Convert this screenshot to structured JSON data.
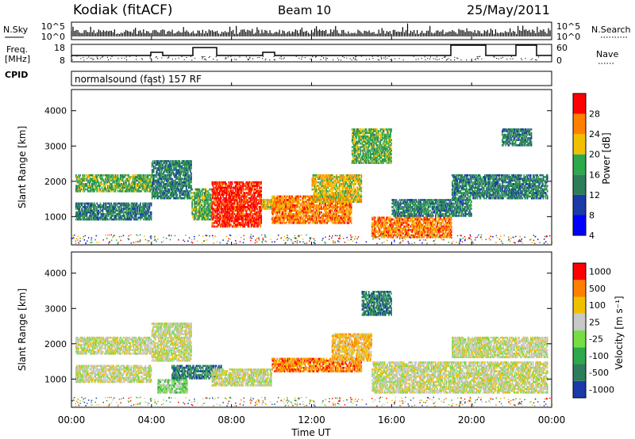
{
  "header": {
    "station": "Kodiak (fitACF)",
    "beam": "Beam 10",
    "date": "25/May/2011"
  },
  "top_panels": {
    "nsky_label": "N.Sky",
    "nsearch_label": "N.Search",
    "freq_label_line1": "Freq.",
    "freq_label_line2": "[MHz]",
    "nave_label": "Nave",
    "cpid_label": "CPID",
    "left_ticks_top": [
      "10^5",
      "10^0"
    ],
    "right_ticks_top": [
      "10^5",
      "10^0"
    ],
    "freq_ticks": [
      "18",
      "8"
    ],
    "nave_ticks": [
      "60",
      "0"
    ],
    "cpid_text": "normalsound (fast) 157 RF"
  },
  "chart_data": [
    {
      "type": "heatmap",
      "name": "power",
      "ylabel": "Slant Range [km]",
      "yticks": [
        "1000",
        "2000",
        "3000",
        "4000"
      ],
      "ylim": [
        200,
        4600
      ],
      "xlim": [
        0,
        24
      ],
      "colorbar_label": "Power [dB]",
      "colorbar_ticks": [
        "28",
        "24",
        "20",
        "16",
        "12",
        "8",
        "4"
      ],
      "colors": [
        "#0000ff",
        "#1a3aa8",
        "#2e7d5a",
        "#2ea84c",
        "#f0c000",
        "#ff8000",
        "#ff0000"
      ],
      "echo_regions": [
        {
          "t0": 0.2,
          "t1": 4.0,
          "r0": 1700,
          "r1": 2200,
          "level": 3
        },
        {
          "t0": 0.2,
          "t1": 4.0,
          "r0": 900,
          "r1": 1400,
          "level": 2
        },
        {
          "t0": 4.0,
          "t1": 6.0,
          "r0": 1500,
          "r1": 2600,
          "level": 2
        },
        {
          "t0": 6.0,
          "t1": 7.0,
          "r0": 900,
          "r1": 1800,
          "level": 3
        },
        {
          "t0": 7.0,
          "t1": 9.5,
          "r0": 700,
          "r1": 2000,
          "level": 6
        },
        {
          "t0": 9.5,
          "t1": 11.0,
          "r0": 1200,
          "r1": 1500,
          "level": 4
        },
        {
          "t0": 10.0,
          "t1": 14.0,
          "r0": 800,
          "r1": 1600,
          "level": 5
        },
        {
          "t0": 12.0,
          "t1": 14.5,
          "r0": 1400,
          "r1": 2200,
          "level": 4
        },
        {
          "t0": 14.0,
          "t1": 16.0,
          "r0": 2500,
          "r1": 3500,
          "level": 3
        },
        {
          "t0": 15.0,
          "t1": 19.0,
          "r0": 400,
          "r1": 1000,
          "level": 5
        },
        {
          "t0": 16.0,
          "t1": 20.0,
          "r0": 1000,
          "r1": 1500,
          "level": 2
        },
        {
          "t0": 19.0,
          "t1": 23.8,
          "r0": 1500,
          "r1": 2200,
          "level": 2
        },
        {
          "t0": 21.5,
          "t1": 23.0,
          "r0": 3000,
          "r1": 3500,
          "level": 2
        }
      ]
    },
    {
      "type": "heatmap",
      "name": "velocity",
      "ylabel": "Slant Range [km]",
      "yticks": [
        "1000",
        "2000",
        "3000",
        "4000"
      ],
      "ylim": [
        200,
        4600
      ],
      "xlim": [
        0,
        24
      ],
      "colorbar_label": "Velocity [m s⁻¹]",
      "colorbar_ticks": [
        "1000",
        "500",
        "100",
        "25",
        "-25",
        "-100",
        "-500",
        "-1000"
      ],
      "colors": [
        "#1a3aa8",
        "#2e7d5a",
        "#2ea84c",
        "#77dd44",
        "#c8c8c8",
        "#f0c000",
        "#ff8000",
        "#ff0000"
      ],
      "echo_regions": [
        {
          "t0": 0.2,
          "t1": 4.0,
          "r0": 1700,
          "r1": 2200,
          "level": 4
        },
        {
          "t0": 0.2,
          "t1": 4.0,
          "r0": 900,
          "r1": 1400,
          "level": 4
        },
        {
          "t0": 4.0,
          "t1": 6.0,
          "r0": 1500,
          "r1": 2600,
          "level": 4
        },
        {
          "t0": 4.3,
          "t1": 5.8,
          "r0": 600,
          "r1": 1000,
          "level": 3
        },
        {
          "t0": 5.0,
          "t1": 7.5,
          "r0": 1000,
          "r1": 1400,
          "level": 1
        },
        {
          "t0": 7.0,
          "t1": 10.0,
          "r0": 800,
          "r1": 1300,
          "level": 4
        },
        {
          "t0": 10.0,
          "t1": 14.5,
          "r0": 1200,
          "r1": 1600,
          "level": 6
        },
        {
          "t0": 13.0,
          "t1": 15.0,
          "r0": 1500,
          "r1": 2300,
          "level": 5
        },
        {
          "t0": 14.5,
          "t1": 16.0,
          "r0": 2800,
          "r1": 3500,
          "level": 1
        },
        {
          "t0": 15.0,
          "t1": 23.8,
          "r0": 600,
          "r1": 1500,
          "level": 4
        },
        {
          "t0": 19.0,
          "t1": 23.8,
          "r0": 1600,
          "r1": 2200,
          "level": 4
        }
      ]
    }
  ],
  "xaxis": {
    "ticks": [
      "00:00",
      "04:00",
      "08:00",
      "12:00",
      "16:00",
      "20:00",
      "00:00"
    ],
    "label": "Time UT"
  }
}
